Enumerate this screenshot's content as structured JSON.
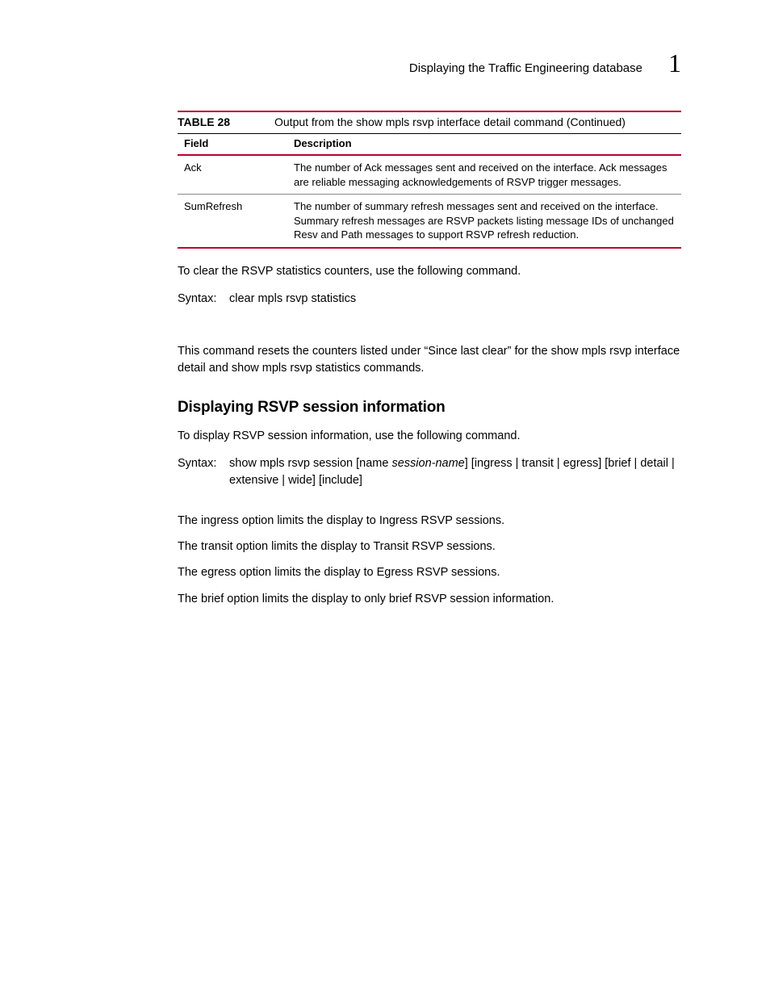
{
  "header": {
    "title": "Displaying the Traffic Engineering database",
    "chapter": "1"
  },
  "table": {
    "label": "TABLE 28",
    "caption": "Output from the show mpls rsvp interface detail command  (Continued)",
    "columns": [
      "Field",
      "Description"
    ],
    "rows": [
      {
        "field": "Ack",
        "description": "The number of Ack messages sent and received on the interface. Ack messages are reliable messaging acknowledgements of RSVP trigger messages."
      },
      {
        "field": "SumRefresh",
        "description": "The number of summary refresh messages sent and received on the interface. Summary refresh messages are RSVP packets listing message IDs of unchanged Resv and Path messages to support RSVP refresh reduction."
      }
    ]
  },
  "body": {
    "p1": "To clear the RSVP statistics counters, use the following command.",
    "syntax1_label": "Syntax:",
    "syntax1_body": "clear mpls rsvp statistics",
    "p2": "This command resets the counters listed under “Since last clear” for the show mpls rsvp interface detail and show mpls rsvp statistics commands.",
    "heading": "Displaying RSVP session information",
    "p3": "To display RSVP session information, use the following command.",
    "syntax2_label": "Syntax:",
    "syntax2_pre": "show mpls rsvp session [name ",
    "syntax2_italic": "session-name",
    "syntax2_post": "] [ingress | transit | egress] [brief | detail | extensive | wide] [include]",
    "opt1": "The ingress option limits the display to Ingress RSVP sessions.",
    "opt2": "The transit option limits the display to Transit RSVP sessions.",
    "opt3": "The egress option limits the display to Egress RSVP sessions.",
    "opt4": "The brief option limits the display to only brief RSVP session information."
  }
}
